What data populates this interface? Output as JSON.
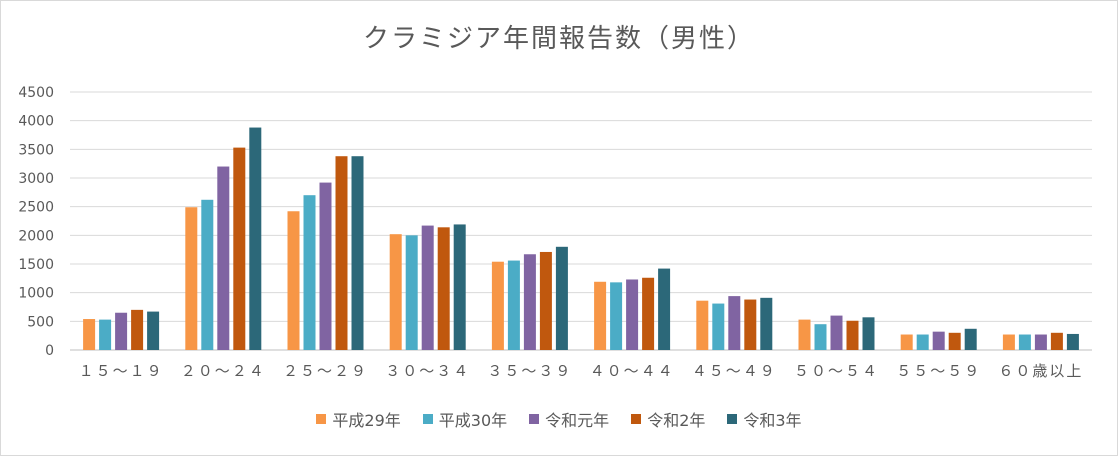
{
  "chart_data": {
    "type": "bar",
    "title": "クラミジア年間報告数（男性）",
    "categories": [
      "１５～１９",
      "２０～２４",
      "２５～２９",
      "３０～３４",
      "３５～３９",
      "４０～４４",
      "４５～４９",
      "５０～５４",
      "５５～５９",
      "６０歳以上"
    ],
    "ylim": [
      0,
      4500
    ],
    "yticks": [
      0,
      500,
      1000,
      1500,
      2000,
      2500,
      3000,
      3500,
      4000,
      4500
    ],
    "grid": true,
    "legend_position": "bottom",
    "series": [
      {
        "name": "平成29年",
        "color": "#f79646",
        "values": [
          540,
          2490,
          2420,
          2020,
          1540,
          1190,
          860,
          530,
          270,
          270
        ]
      },
      {
        "name": "平成30年",
        "color": "#4bacc6",
        "values": [
          530,
          2620,
          2700,
          2000,
          1560,
          1180,
          810,
          450,
          270,
          270
        ]
      },
      {
        "name": "令和元年",
        "color": "#8064a2",
        "values": [
          650,
          3200,
          2920,
          2170,
          1670,
          1230,
          940,
          600,
          320,
          270
        ]
      },
      {
        "name": "令和2年",
        "color": "#c0580e",
        "values": [
          700,
          3530,
          3380,
          2140,
          1710,
          1260,
          880,
          510,
          300,
          300
        ]
      },
      {
        "name": "令和3年",
        "color": "#2c6879",
        "values": [
          670,
          3880,
          3380,
          2190,
          1800,
          1420,
          910,
          570,
          370,
          280
        ]
      }
    ]
  }
}
